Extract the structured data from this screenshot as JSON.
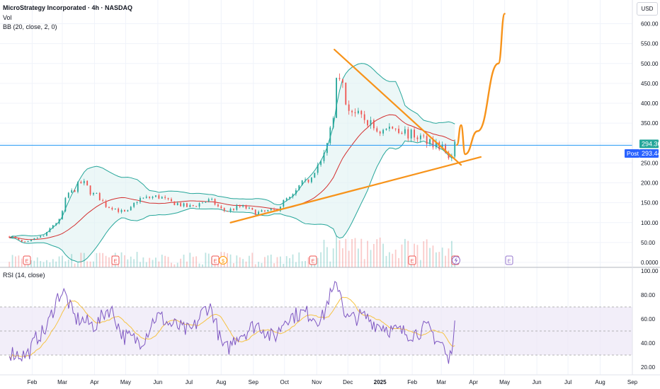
{
  "header": {
    "symbol_line": "MicroStrategy Incorporated · 4h · NASDAQ",
    "volume_label": "Vol",
    "bb_label": "BB (20, close, 2, 0)",
    "rsi_label": "RSI (14, close)",
    "currency_button": "USD"
  },
  "price_scale": {
    "ticks": [
      "600.00",
      "550.00",
      "500.00",
      "450.00",
      "400.00",
      "350.00",
      "300.00",
      "250.00",
      "200.00",
      "150.00",
      "100.00",
      "50.00",
      "0.0000"
    ],
    "current_price_tag": "294.36",
    "post_label": "Post",
    "post_price_tag": "293.44"
  },
  "rsi_scale": {
    "ticks": [
      "100.00",
      "80.00",
      "60.00",
      "40.00",
      "20.00"
    ]
  },
  "time_axis": {
    "labels": [
      "Feb",
      "Mar",
      "Apr",
      "May",
      "Jun",
      "Jul",
      "Aug",
      "Sep",
      "Oct",
      "Nov",
      "Dec",
      "2025",
      "Feb",
      "Mar",
      "Apr",
      "May",
      "Jun",
      "Jul",
      "Aug",
      "Sep"
    ]
  },
  "event_markers": [
    "E",
    "E",
    "E",
    "$",
    "E",
    "E",
    "E",
    "E"
  ],
  "colors": {
    "up_candle": "#26a69a",
    "down_candle": "#ef5350",
    "bb_basis": "#d32f2f",
    "bb_bands": "#26a69a",
    "bb_fill": "#e0f2f1",
    "trendline": "#f7931a",
    "price_line": "#2196f3",
    "post_tag": "#2962ff",
    "rsi_line": "#7e57c2",
    "rsi_ma": "#f6c344",
    "rsi_band_fill": "#ede7f6"
  },
  "chart_data": {
    "type": "candlestick",
    "title": "MicroStrategy Incorporated · 4h · NASDAQ",
    "price_range": [
      0,
      620
    ],
    "current_price": 294.36,
    "post_market_price": 293.44,
    "price_waypoints": {
      "dates": [
        "2024-01-10",
        "2024-01-25",
        "2024-02-10",
        "2024-02-25",
        "2024-03-08",
        "2024-03-20",
        "2024-04-01",
        "2024-04-15",
        "2024-05-01",
        "2024-05-15",
        "2024-06-01",
        "2024-06-15",
        "2024-07-01",
        "2024-07-20",
        "2024-08-05",
        "2024-08-20",
        "2024-09-05",
        "2024-09-20",
        "2024-10-05",
        "2024-10-20",
        "2024-11-05",
        "2024-11-15",
        "2024-11-21",
        "2024-12-01",
        "2024-12-15",
        "2025-01-01",
        "2025-01-15",
        "2025-02-01",
        "2025-02-15",
        "2025-03-01",
        "2025-03-10",
        "2025-03-15"
      ],
      "close": [
        65,
        50,
        65,
        100,
        175,
        200,
        170,
        140,
        125,
        160,
        165,
        150,
        140,
        155,
        130,
        140,
        125,
        130,
        160,
        200,
        250,
        340,
        490,
        390,
        360,
        330,
        340,
        320,
        310,
        290,
        260,
        294
      ]
    },
    "trendlines": [
      {
        "name": "upper",
        "from": {
          "date": "2024-11-18",
          "price": 535
        },
        "to": {
          "date": "2025-03-20",
          "price": 245
        }
      },
      {
        "name": "lower",
        "from": {
          "date": "2024-08-10",
          "price": 100
        },
        "to": {
          "date": "2025-04-08",
          "price": 265
        }
      }
    ],
    "projection": [
      {
        "date": "2025-03-16",
        "price": 295
      },
      {
        "date": "2025-03-20",
        "price": 345
      },
      {
        "date": "2025-03-24",
        "price": 272
      },
      {
        "date": "2025-04-05",
        "price": 330
      },
      {
        "date": "2025-04-25",
        "price": 500
      },
      {
        "date": "2025-05-01",
        "price": 625
      }
    ],
    "rsi": {
      "range": [
        20,
        100
      ],
      "bands": [
        30,
        50,
        70
      ],
      "waypoints": {
        "dates": [
          "2024-01-10",
          "2024-01-25",
          "2024-02-10",
          "2024-03-01",
          "2024-03-15",
          "2024-04-01",
          "2024-04-15",
          "2024-05-01",
          "2024-05-15",
          "2024-06-01",
          "2024-06-15",
          "2024-07-01",
          "2024-07-20",
          "2024-08-05",
          "2024-08-20",
          "2024-09-05",
          "2024-09-20",
          "2024-10-05",
          "2024-10-20",
          "2024-11-05",
          "2024-11-15",
          "2024-11-21",
          "2024-12-01",
          "2024-12-15",
          "2025-01-01",
          "2025-01-15",
          "2025-02-01",
          "2025-02-15",
          "2025-03-01",
          "2025-03-08",
          "2025-03-15"
        ],
        "values": [
          32,
          30,
          48,
          82,
          60,
          55,
          68,
          45,
          42,
          62,
          55,
          50,
          70,
          35,
          48,
          55,
          45,
          62,
          65,
          60,
          80,
          88,
          60,
          62,
          55,
          50,
          48,
          52,
          40,
          25,
          58
        ]
      }
    }
  }
}
